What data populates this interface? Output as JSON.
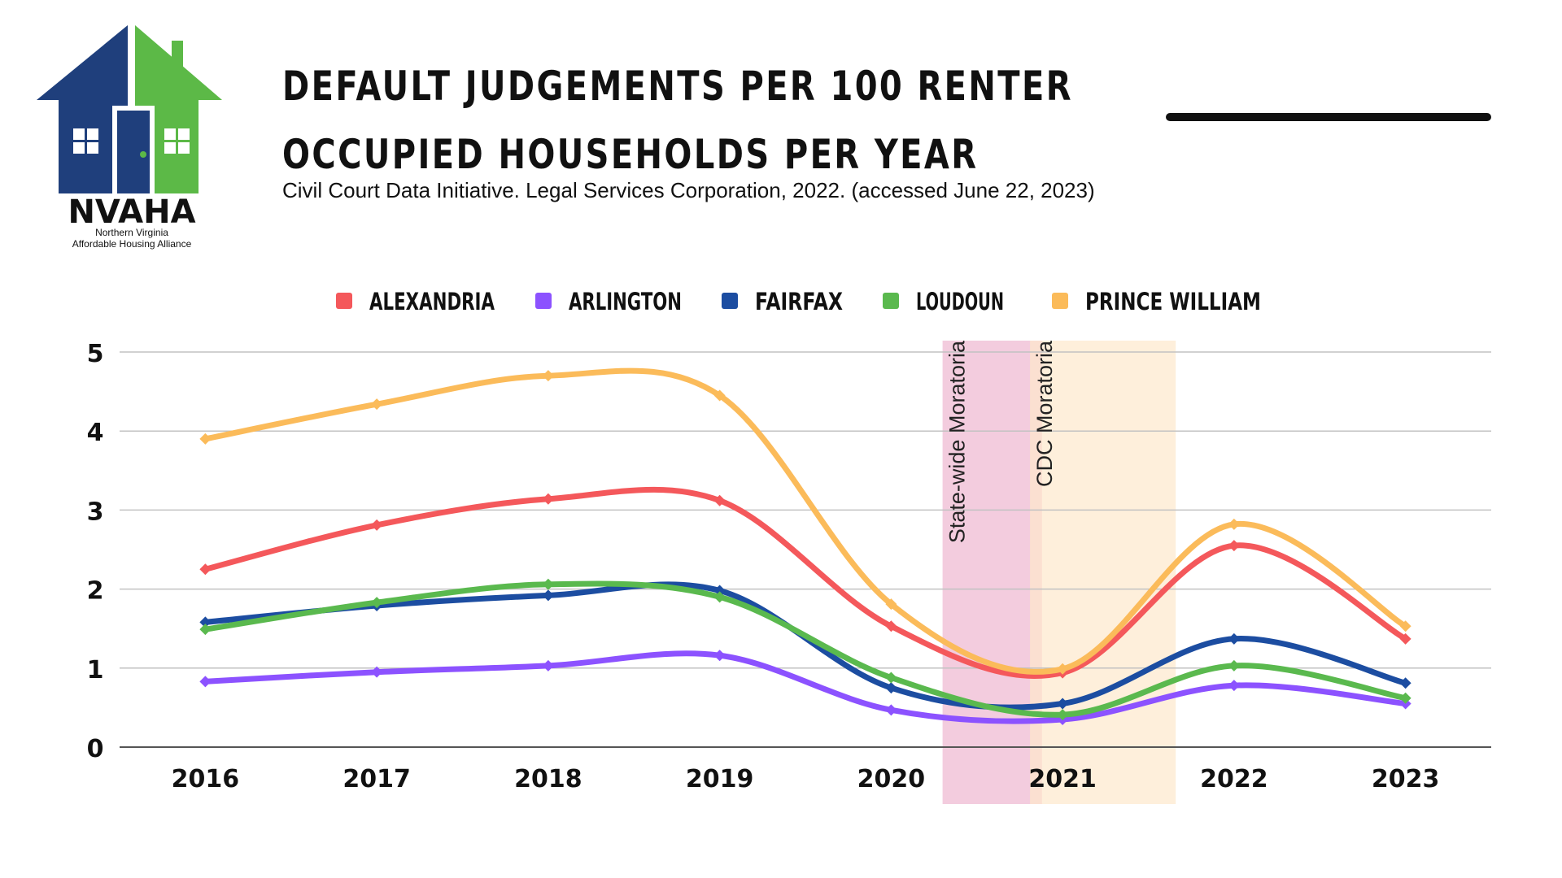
{
  "title": {
    "line1": "DEFAULT JUDGEMENTS PER 100 RENTER",
    "line2": "OCCUPIED HOUSEHOLDS PER YEAR"
  },
  "citation": "Civil Court Data Initiative. Legal Services Corporation, 2022. (accessed June 22, 2023)",
  "logo": {
    "name": "NVAHA",
    "subtitle_line1": "Northern Virginia",
    "subtitle_line2": "Affordable Housing Alliance",
    "colors": {
      "blue": "#1f3f7c",
      "green": "#5cb947"
    }
  },
  "chart_data": {
    "type": "line",
    "title": "DEFAULT JUDGEMENTS PER 100 RENTER OCCUPIED HOUSEHOLDS PER YEAR",
    "categories": [
      "2016",
      "2017",
      "2018",
      "2019",
      "2020",
      "2021",
      "2022",
      "2023"
    ],
    "x": [
      2016,
      2017,
      2018,
      2019,
      2020,
      2021,
      2022,
      2023
    ],
    "xlim": [
      2015.5,
      2023.5
    ],
    "ylim": [
      0,
      5
    ],
    "yticks": [
      0,
      1,
      2,
      3,
      4,
      5
    ],
    "grid": true,
    "legend_position": "top",
    "series": [
      {
        "name": "ALEXANDRIA",
        "color": "#f4585b",
        "values": [
          2.25,
          2.81,
          3.14,
          3.12,
          1.53,
          0.94,
          2.55,
          1.37
        ]
      },
      {
        "name": "ARLINGTON",
        "color": "#8c52ff",
        "values": [
          0.83,
          0.95,
          1.03,
          1.16,
          0.47,
          0.35,
          0.78,
          0.55
        ]
      },
      {
        "name": "FAIRFAX",
        "color": "#1c4da1",
        "values": [
          1.58,
          1.79,
          1.92,
          1.98,
          0.75,
          0.55,
          1.37,
          0.81
        ]
      },
      {
        "name": "LOUDOUN",
        "color": "#5ab94e",
        "values": [
          1.49,
          1.83,
          2.06,
          1.9,
          0.88,
          0.41,
          1.03,
          0.62
        ]
      },
      {
        "name": "PRINCE WILLIAM",
        "color": "#fbbb5a",
        "values": [
          3.9,
          4.34,
          4.7,
          4.45,
          1.81,
          0.99,
          2.82,
          1.53
        ]
      }
    ],
    "annotations": [
      {
        "label": "State-wide Moratoria",
        "x_start": 2020.3,
        "x_end": 2020.88,
        "color": "#e9a2c2"
      },
      {
        "label": "CDC Moratoria",
        "x_start": 2020.81,
        "x_end": 2021.66,
        "color": "#fde8cc"
      }
    ]
  }
}
